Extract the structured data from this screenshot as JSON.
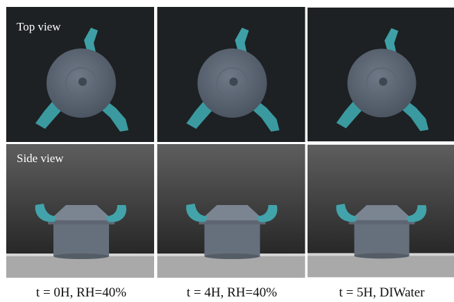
{
  "rows": [
    {
      "label": "Top view"
    },
    {
      "label": "Side view"
    }
  ],
  "captions": [
    "t = 0H, RH=40%",
    "t = 4H, RH=40%",
    "t = 5H, DIWater"
  ]
}
